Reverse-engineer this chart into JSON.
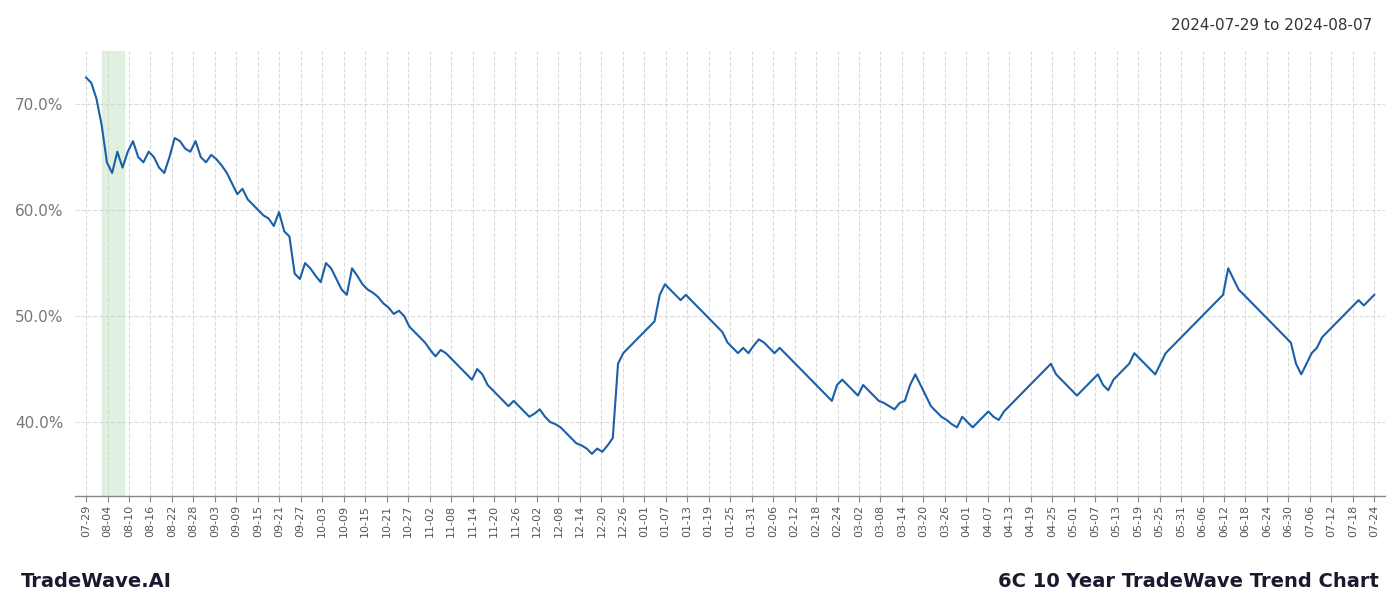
{
  "title_top_right": "2024-07-29 to 2024-08-07",
  "title_bottom_left": "TradeWave.AI",
  "title_bottom_right": "6C 10 Year TradeWave Trend Chart",
  "line_color": "#1a5fa8",
  "line_width": 1.5,
  "background_color": "#ffffff",
  "highlight_color": "#d4ecd4",
  "highlight_alpha": 0.7,
  "ylim": [
    33,
    75
  ],
  "yticks": [
    40.0,
    50.0,
    60.0,
    70.0
  ],
  "xtick_labels": [
    "07-29",
    "08-04",
    "08-10",
    "08-16",
    "08-22",
    "08-28",
    "09-03",
    "09-09",
    "09-15",
    "09-21",
    "09-27",
    "10-03",
    "10-09",
    "10-15",
    "10-21",
    "10-27",
    "11-02",
    "11-08",
    "11-14",
    "11-20",
    "11-26",
    "12-02",
    "12-08",
    "12-14",
    "12-20",
    "12-26",
    "01-01",
    "01-07",
    "01-13",
    "01-19",
    "01-25",
    "01-31",
    "02-06",
    "02-12",
    "02-18",
    "02-24",
    "03-02",
    "03-08",
    "03-14",
    "03-20",
    "03-26",
    "04-01",
    "04-07",
    "04-13",
    "04-19",
    "04-25",
    "05-01",
    "05-07",
    "05-13",
    "05-19",
    "05-25",
    "05-31",
    "06-06",
    "06-12",
    "06-18",
    "06-24",
    "06-30",
    "07-06",
    "07-12",
    "07-18",
    "07-24"
  ],
  "grid_color": "#cccccc",
  "grid_linestyle": "--",
  "grid_alpha": 0.7,
  "highlight_xstart": 0.75,
  "highlight_xend": 1.75,
  "y_values": [
    72.5,
    72.0,
    70.5,
    68.0,
    64.5,
    63.5,
    65.5,
    64.0,
    65.5,
    66.5,
    65.0,
    64.5,
    65.5,
    65.0,
    64.0,
    63.5,
    65.0,
    66.8,
    66.5,
    65.8,
    65.5,
    66.5,
    65.0,
    64.5,
    65.2,
    64.8,
    64.2,
    63.5,
    62.5,
    61.5,
    62.0,
    61.0,
    60.5,
    60.0,
    59.5,
    59.2,
    58.5,
    59.8,
    58.0,
    57.5,
    54.0,
    53.5,
    55.0,
    54.5,
    53.8,
    53.2,
    55.0,
    54.5,
    53.5,
    52.5,
    52.0,
    54.5,
    53.8,
    53.0,
    52.5,
    52.2,
    51.8,
    51.2,
    50.8,
    50.2,
    50.5,
    50.0,
    49.0,
    48.5,
    48.0,
    47.5,
    46.8,
    46.2,
    46.8,
    46.5,
    46.0,
    45.5,
    45.0,
    44.5,
    44.0,
    45.0,
    44.5,
    43.5,
    43.0,
    42.5,
    42.0,
    41.5,
    42.0,
    41.5,
    41.0,
    40.5,
    40.8,
    41.2,
    40.5,
    40.0,
    39.8,
    39.5,
    39.0,
    38.5,
    38.0,
    37.8,
    37.5,
    37.0,
    37.5,
    37.2,
    37.8,
    38.5,
    45.5,
    46.5,
    47.0,
    47.5,
    48.0,
    48.5,
    49.0,
    49.5,
    52.0,
    53.0,
    52.5,
    52.0,
    51.5,
    52.0,
    51.5,
    51.0,
    50.5,
    50.0,
    49.5,
    49.0,
    48.5,
    47.5,
    47.0,
    46.5,
    47.0,
    46.5,
    47.2,
    47.8,
    47.5,
    47.0,
    46.5,
    47.0,
    46.5,
    46.0,
    45.5,
    45.0,
    44.5,
    44.0,
    43.5,
    43.0,
    42.5,
    42.0,
    43.5,
    44.0,
    43.5,
    43.0,
    42.5,
    43.5,
    43.0,
    42.5,
    42.0,
    41.8,
    41.5,
    41.2,
    41.8,
    42.0,
    43.5,
    44.5,
    43.5,
    42.5,
    41.5,
    41.0,
    40.5,
    40.2,
    39.8,
    39.5,
    40.5,
    40.0,
    39.5,
    40.0,
    40.5,
    41.0,
    40.5,
    40.2,
    41.0,
    41.5,
    42.0,
    42.5,
    43.0,
    43.5,
    44.0,
    44.5,
    45.0,
    45.5,
    44.5,
    44.0,
    43.5,
    43.0,
    42.5,
    43.0,
    43.5,
    44.0,
    44.5,
    43.5,
    43.0,
    44.0,
    44.5,
    45.0,
    45.5,
    46.5,
    46.0,
    45.5,
    45.0,
    44.5,
    45.5,
    46.5,
    47.0,
    47.5,
    48.0,
    48.5,
    49.0,
    49.5,
    50.0,
    50.5,
    51.0,
    51.5,
    52.0,
    54.5,
    53.5,
    52.5,
    52.0,
    51.5,
    51.0,
    50.5,
    50.0,
    49.5,
    49.0,
    48.5,
    48.0,
    47.5,
    45.5,
    44.5,
    45.5,
    46.5,
    47.0,
    48.0,
    48.5,
    49.0,
    49.5,
    50.0,
    50.5,
    51.0,
    51.5,
    51.0,
    51.5,
    52.0
  ]
}
